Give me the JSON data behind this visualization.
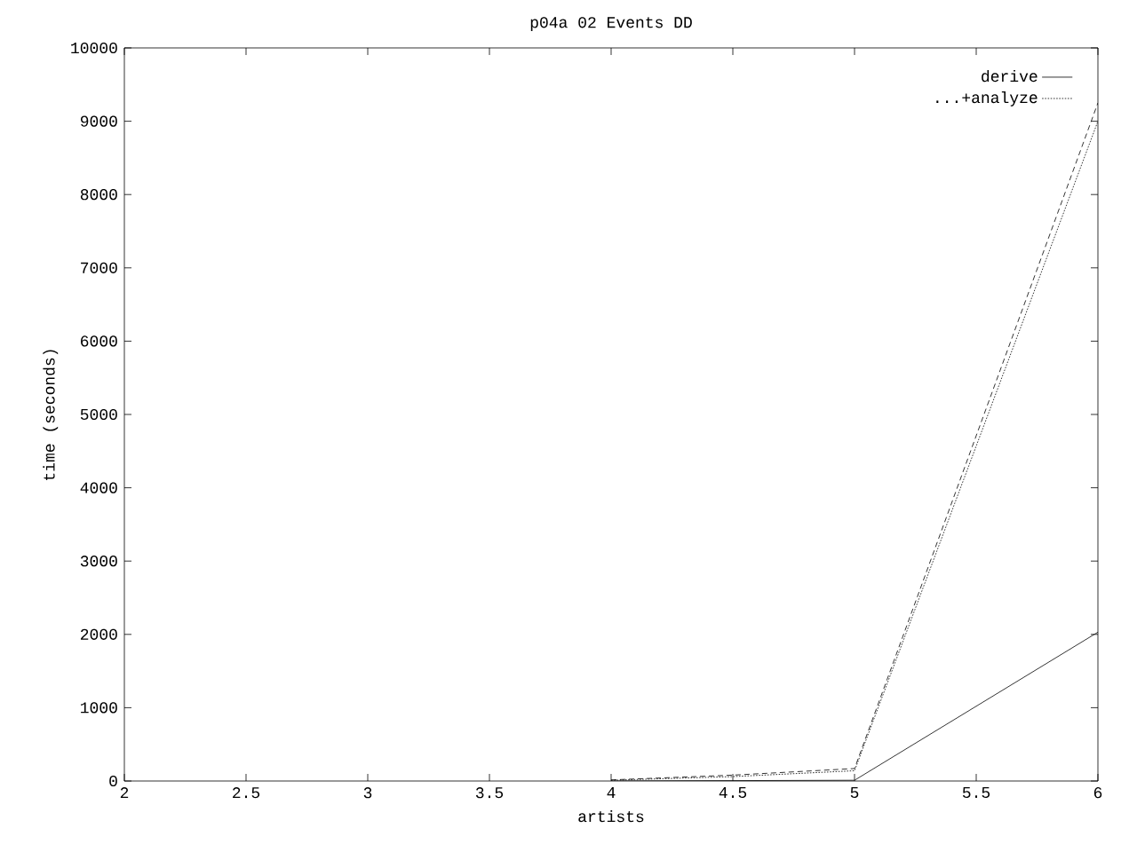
{
  "chart_data": {
    "type": "line",
    "title": "p04a 02 Events DD",
    "xlabel": "artists",
    "ylabel": "time (seconds)",
    "x": [
      4,
      4.5,
      5,
      6
    ],
    "series": [
      {
        "name": "derive",
        "color": "#000000",
        "line_style": "solid",
        "values": [
          0,
          5,
          10,
          2030
        ]
      },
      {
        "name": "...+analyze",
        "color": "#000000",
        "line_style": "dotted",
        "values": [
          10,
          60,
          140,
          9000
        ]
      },
      {
        "color": "#000000",
        "line_style": "dashed",
        "values": [
          15,
          80,
          170,
          9250
        ]
      }
    ],
    "xlim": [
      2,
      6
    ],
    "ylim": [
      0,
      10000
    ],
    "xticks": [
      2,
      2.5,
      3,
      3.5,
      4,
      4.5,
      5,
      5.5,
      6
    ],
    "yticks": [
      0,
      1000,
      2000,
      3000,
      4000,
      5000,
      6000,
      7000,
      8000,
      9000,
      10000
    ],
    "legend": "top right",
    "grid": false,
    "marker": "none"
  }
}
